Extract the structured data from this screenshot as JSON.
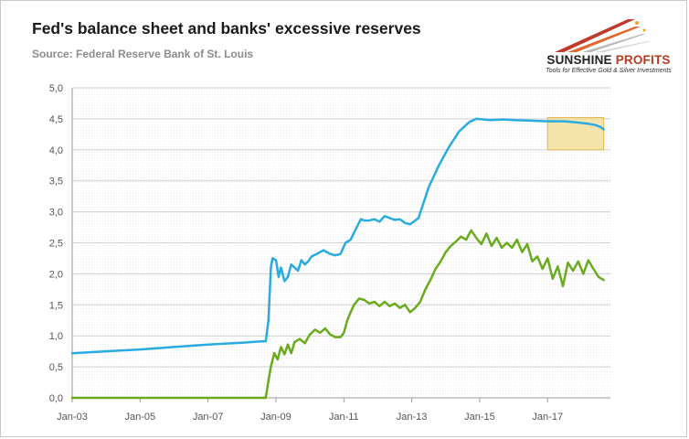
{
  "header": {
    "title": "Fed's balance sheet and banks' excessive reserves",
    "source": "Source: Federal Reserve Bank of St. Louis"
  },
  "logo": {
    "name_part1": "SUNSHINE",
    "name_part2": " PROFITS",
    "tagline": "Tools for Effective Gold & Silver Investments"
  },
  "chart_data": {
    "type": "line",
    "title": "Fed's balance sheet and banks' excessive reserves",
    "subtitle": "Source: Federal Reserve Bank of St. Louis",
    "xlabel": "",
    "ylabel": "",
    "xlim": [
      2003.0,
      2018.85
    ],
    "ylim": [
      0,
      5
    ],
    "x_ticks": [
      "Jan-03",
      "Jan-05",
      "Jan-07",
      "Jan-09",
      "Jan-11",
      "Jan-13",
      "Jan-15",
      "Jan-17"
    ],
    "x_tick_values": [
      2003,
      2005,
      2007,
      2009,
      2011,
      2013,
      2015,
      2017
    ],
    "y_ticks": [
      "0,0",
      "0,5",
      "1,0",
      "1,5",
      "2,0",
      "2,5",
      "3,0",
      "3,5",
      "4,0",
      "4,5",
      "5,0"
    ],
    "y_tick_values": [
      0,
      0.5,
      1,
      1.5,
      2,
      2.5,
      3,
      3.5,
      4,
      4.5,
      5
    ],
    "grid": true,
    "legend": "none",
    "highlight": {
      "x_range": [
        2017.0,
        2018.65
      ],
      "y_range": [
        4.0,
        4.52
      ],
      "color": "#f2d98a"
    },
    "series": [
      {
        "color": "#29abe2",
        "x": [
          2003.0,
          2004.0,
          2005.0,
          2006.0,
          2007.0,
          2008.0,
          2008.55,
          2008.7,
          2008.78,
          2008.85,
          2008.9,
          2009.0,
          2009.08,
          2009.15,
          2009.25,
          2009.35,
          2009.45,
          2009.55,
          2009.65,
          2009.75,
          2009.85,
          2009.95,
          2010.05,
          2010.2,
          2010.4,
          2010.6,
          2010.75,
          2010.9,
          2011.05,
          2011.2,
          2011.35,
          2011.5,
          2011.6,
          2011.75,
          2011.9,
          2012.05,
          2012.2,
          2012.35,
          2012.5,
          2012.65,
          2012.8,
          2012.95,
          2013.2,
          2013.5,
          2013.8,
          2014.1,
          2014.4,
          2014.7,
          2014.9,
          2015.3,
          2015.7,
          2016.0,
          2016.5,
          2017.0,
          2017.5,
          2017.9,
          2018.2,
          2018.4,
          2018.55,
          2018.65
        ],
        "values": [
          0.72,
          0.75,
          0.78,
          0.82,
          0.86,
          0.89,
          0.91,
          0.91,
          1.25,
          2.1,
          2.25,
          2.22,
          1.95,
          2.1,
          1.88,
          1.95,
          2.15,
          2.1,
          2.05,
          2.22,
          2.15,
          2.2,
          2.28,
          2.32,
          2.38,
          2.32,
          2.3,
          2.32,
          2.5,
          2.55,
          2.72,
          2.88,
          2.86,
          2.86,
          2.88,
          2.84,
          2.93,
          2.9,
          2.87,
          2.88,
          2.82,
          2.8,
          2.9,
          3.4,
          3.75,
          4.05,
          4.3,
          4.45,
          4.5,
          4.48,
          4.49,
          4.48,
          4.47,
          4.46,
          4.46,
          4.44,
          4.42,
          4.4,
          4.37,
          4.33
        ]
      },
      {
        "color": "#6aab1e",
        "x": [
          2003.0,
          2008.7,
          2008.78,
          2008.85,
          2008.95,
          2009.05,
          2009.15,
          2009.25,
          2009.35,
          2009.45,
          2009.55,
          2009.7,
          2009.85,
          2010.0,
          2010.15,
          2010.3,
          2010.45,
          2010.6,
          2010.75,
          2010.9,
          2011.0,
          2011.1,
          2011.2,
          2011.3,
          2011.45,
          2011.6,
          2011.75,
          2011.9,
          2012.05,
          2012.2,
          2012.35,
          2012.5,
          2012.65,
          2012.8,
          2012.95,
          2013.1,
          2013.25,
          2013.4,
          2013.55,
          2013.7,
          2013.85,
          2014.0,
          2014.15,
          2014.3,
          2014.45,
          2014.6,
          2014.75,
          2014.9,
          2015.05,
          2015.2,
          2015.35,
          2015.5,
          2015.65,
          2015.8,
          2015.95,
          2016.1,
          2016.25,
          2016.4,
          2016.55,
          2016.7,
          2016.85,
          2017.0,
          2017.15,
          2017.3,
          2017.45,
          2017.6,
          2017.75,
          2017.9,
          2018.05,
          2018.2,
          2018.35,
          2018.5,
          2018.65
        ],
        "values": [
          0.0,
          0.0,
          0.28,
          0.5,
          0.72,
          0.62,
          0.82,
          0.7,
          0.86,
          0.72,
          0.9,
          0.95,
          0.88,
          1.02,
          1.1,
          1.05,
          1.12,
          1.02,
          0.98,
          0.98,
          1.05,
          1.25,
          1.38,
          1.5,
          1.6,
          1.58,
          1.52,
          1.55,
          1.48,
          1.55,
          1.48,
          1.52,
          1.45,
          1.5,
          1.38,
          1.45,
          1.55,
          1.75,
          1.9,
          2.08,
          2.2,
          2.35,
          2.45,
          2.52,
          2.6,
          2.55,
          2.7,
          2.58,
          2.48,
          2.65,
          2.45,
          2.58,
          2.42,
          2.5,
          2.42,
          2.55,
          2.35,
          2.48,
          2.2,
          2.28,
          2.08,
          2.25,
          1.92,
          2.12,
          1.8,
          2.18,
          2.05,
          2.2,
          2.0,
          2.22,
          2.08,
          1.95,
          1.9
        ]
      }
    ]
  }
}
